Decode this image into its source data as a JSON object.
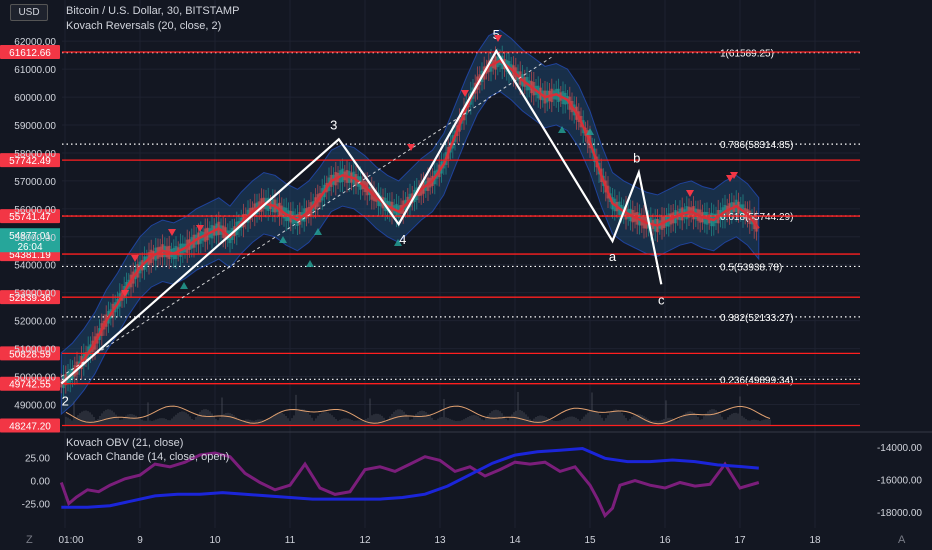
{
  "header": {
    "currency_button": "USD",
    "title": "Bitcoin / U.S. Dollar, 30, BITSTAMP",
    "indicator_1": "Kovach Reversals (20, close, 2)",
    "indicator_2": "Kovach OBV (21, close)",
    "indicator_3": "Kovach Chande (14, close, open)"
  },
  "bottom_bar": {
    "timezone_icon": "Z",
    "auto_label": "A"
  },
  "colors": {
    "background": "#131722",
    "price_line": "#d62f38",
    "band_fill": "#1f4e79",
    "level_red": "#ff1f1f",
    "obv_line": "#1b25d9",
    "chande_line": "#7b1e7b",
    "wave_line": "#ffffff",
    "fib_dotted": "#ffffff",
    "current_price": "#26a69a"
  },
  "chart_data": [
    {
      "type": "line",
      "title": "Bitcoin / U.S. Dollar, 30, BITSTAMP",
      "ylim": [
        48200,
        62700
      ],
      "y_ticks": [
        49000,
        50000,
        51000,
        52000,
        53000,
        54000,
        55000,
        56000,
        57000,
        58000,
        59000,
        60000,
        61000,
        62000
      ],
      "x_ticks": [
        {
          "label": "01:00",
          "day": 8.0
        },
        {
          "label": "9",
          "day": 9.0
        },
        {
          "label": "10",
          "day": 10.0
        },
        {
          "label": "11",
          "day": 11.0
        },
        {
          "label": "12",
          "day": 12.0
        },
        {
          "label": "13",
          "day": 13.0
        },
        {
          "label": "14",
          "day": 14.0
        },
        {
          "label": "15",
          "day": 15.0
        },
        {
          "label": "16",
          "day": 16.0
        },
        {
          "label": "17",
          "day": 17.0
        },
        {
          "label": "18",
          "day": 18.0
        }
      ],
      "current_price": {
        "price": "54877.01",
        "countdown": "26:04",
        "value": 54877.01
      },
      "red_levels": [
        {
          "label": "61612.66",
          "value": 61612.66
        },
        {
          "label": "57742.49",
          "value": 57742.49
        },
        {
          "label": "55741.47",
          "value": 55741.47
        },
        {
          "label": "54381.19",
          "value": 54381.19
        },
        {
          "label": "52839.36",
          "value": 52839.36
        },
        {
          "label": "50828.59",
          "value": 50828.59
        },
        {
          "label": "49742.55",
          "value": 49742.55
        },
        {
          "label": "48247.20",
          "value": 48247.2
        }
      ],
      "fib_levels": [
        {
          "label": "1(61589.25)",
          "value": 61589.25
        },
        {
          "label": "0.786(58314.85)",
          "value": 58314.85
        },
        {
          "label": "0.618(55744.29)",
          "value": 55744.29
        },
        {
          "label": "0.5(53938.78)",
          "value": 53938.78
        },
        {
          "label": "0.382(52133.27)",
          "value": 52133.27
        },
        {
          "label": "0.236(49899.34)",
          "value": 49899.34
        }
      ],
      "price_series": {
        "name": "",
        "x": [
          7.95,
          8.1,
          8.25,
          8.4,
          8.55,
          8.7,
          8.85,
          9.0,
          9.15,
          9.3,
          9.45,
          9.6,
          9.75,
          9.9,
          10.05,
          10.2,
          10.35,
          10.5,
          10.65,
          10.8,
          10.95,
          11.1,
          11.25,
          11.4,
          11.55,
          11.7,
          11.85,
          12.0,
          12.15,
          12.3,
          12.45,
          12.6,
          12.75,
          12.9,
          13.05,
          13.2,
          13.35,
          13.5,
          13.65,
          13.8,
          13.95,
          14.1,
          14.25,
          14.4,
          14.55,
          14.7,
          14.85,
          15.0,
          15.15,
          15.3,
          15.45,
          15.6,
          15.75,
          15.9,
          16.05,
          16.2,
          16.35,
          16.5,
          16.65,
          16.8,
          16.95,
          17.1,
          17.25
        ],
        "y": [
          49750,
          50100,
          50600,
          51200,
          52000,
          52600,
          53300,
          53900,
          54300,
          54500,
          54400,
          54600,
          54900,
          55100,
          55300,
          55000,
          55500,
          55900,
          56200,
          56100,
          55800,
          55600,
          55900,
          56400,
          57000,
          57200,
          57100,
          56800,
          56400,
          56100,
          55900,
          56300,
          56700,
          57000,
          57600,
          58600,
          59600,
          60500,
          61100,
          61300,
          61000,
          60600,
          60300,
          60000,
          60100,
          59900,
          59300,
          58400,
          57200,
          56200,
          55900,
          55700,
          55500,
          55400,
          55600,
          55800,
          55900,
          55700,
          55600,
          55900,
          56100,
          55800,
          55300
        ]
      },
      "obv_series": {
        "name": "",
        "ylim": [
          -18600,
          -13700
        ],
        "y_ticks": [
          -14000,
          -16000,
          -18000
        ],
        "x": [
          7.95,
          8.3,
          8.6,
          8.9,
          9.2,
          9.5,
          9.8,
          10.1,
          10.4,
          10.7,
          11.0,
          11.3,
          11.6,
          11.9,
          12.2,
          12.5,
          12.8,
          13.1,
          13.4,
          13.7,
          14.0,
          14.3,
          14.6,
          14.9,
          15.2,
          15.5,
          15.8,
          16.1,
          16.4,
          16.7,
          17.0,
          17.25
        ],
        "y": [
          -17700,
          -17700,
          -17600,
          -17300,
          -17000,
          -16900,
          -16900,
          -16800,
          -16900,
          -17000,
          -17100,
          -17200,
          -17200,
          -17200,
          -17200,
          -17100,
          -16900,
          -16400,
          -15700,
          -15000,
          -14500,
          -14300,
          -14200,
          -14100,
          -14700,
          -14900,
          -14900,
          -14800,
          -14900,
          -15100,
          -15200,
          -15300
        ]
      },
      "chande_series": {
        "name": "",
        "ylim": [
          -45,
          42
        ],
        "y_ticks": [
          25,
          0,
          -25
        ],
        "x": [
          7.95,
          8.05,
          8.15,
          8.3,
          8.45,
          8.6,
          8.8,
          9.0,
          9.2,
          9.4,
          9.6,
          9.8,
          10.0,
          10.2,
          10.4,
          10.6,
          10.8,
          11.0,
          11.2,
          11.4,
          11.6,
          11.8,
          12.0,
          12.2,
          12.4,
          12.6,
          12.8,
          13.0,
          13.2,
          13.4,
          13.6,
          13.8,
          14.0,
          14.2,
          14.4,
          14.6,
          14.8,
          15.0,
          15.1,
          15.2,
          15.3,
          15.4,
          15.6,
          15.8,
          16.0,
          16.2,
          16.4,
          16.6,
          16.8,
          17.0,
          17.25
        ],
        "y": [
          -2,
          -25,
          -18,
          -10,
          -12,
          -5,
          2,
          6,
          18,
          15,
          20,
          28,
          30,
          26,
          8,
          -2,
          -10,
          -5,
          18,
          -8,
          -15,
          -12,
          12,
          15,
          10,
          18,
          26,
          22,
          10,
          15,
          5,
          12,
          20,
          18,
          20,
          10,
          15,
          -5,
          -20,
          -38,
          -30,
          -5,
          0,
          -5,
          -8,
          -2,
          -6,
          -4,
          18,
          -8,
          -2
        ]
      },
      "waves": [
        {
          "label": "2",
          "day": 7.95,
          "value": 49750
        },
        {
          "label": "3",
          "day": 11.65,
          "value": 58490
        },
        {
          "label": "4",
          "day": 12.45,
          "value": 55450
        },
        {
          "label": "5",
          "day": 13.75,
          "value": 61650
        },
        {
          "label": "a",
          "day": 15.3,
          "value": 54850
        },
        {
          "label": "b",
          "day": 15.65,
          "value": 57300
        },
        {
          "label": "c",
          "day": 15.95,
          "value": 53300
        }
      ],
      "trendline": [
        {
          "day": 7.95,
          "value": 50000
        },
        {
          "day": 14.5,
          "value": 61450
        }
      ]
    }
  ]
}
